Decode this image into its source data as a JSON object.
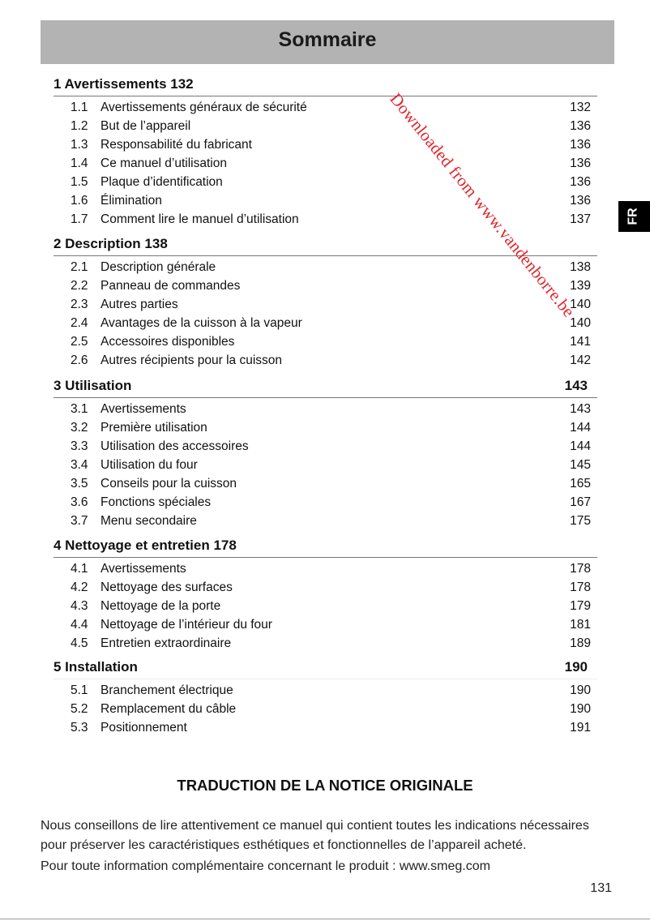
{
  "header": {
    "title": "Sommaire"
  },
  "language_tab": "FR",
  "watermark": "Downloaded from www.vandenborre.be",
  "sections": [
    {
      "heading": "1 Avertissements 132",
      "page_right": "",
      "entries": [
        {
          "num": "1.1",
          "text": "Avertissements généraux de sécurité",
          "page": "132"
        },
        {
          "num": "1.2",
          "text": "But de l’appareil",
          "page": "136"
        },
        {
          "num": "1.3",
          "text": "Responsabilité du fabricant",
          "page": "136"
        },
        {
          "num": "1.4",
          "text": "Ce manuel d’utilisation",
          "page": "136"
        },
        {
          "num": "1.5",
          "text": "Plaque d’identification",
          "page": "136"
        },
        {
          "num": "1.6",
          "text": "Élimination",
          "page": "136"
        },
        {
          "num": "1.7",
          "text": "Comment lire le manuel d’utilisation",
          "page": "137"
        }
      ]
    },
    {
      "heading": "2 Description 138",
      "page_right": "",
      "entries": [
        {
          "num": "2.1",
          "text": "Description générale",
          "page": "138"
        },
        {
          "num": "2.2",
          "text": "Panneau de commandes",
          "page": "139"
        },
        {
          "num": "2.3",
          "text": "Autres parties",
          "page": "140"
        },
        {
          "num": "2.4",
          "text": "Avantages de la cuisson à la vapeur",
          "page": "140"
        },
        {
          "num": "2.5",
          "text": "Accessoires disponibles",
          "page": "141"
        },
        {
          "num": "2.6",
          "text": "Autres récipients pour la cuisson",
          "page": "142"
        }
      ]
    },
    {
      "heading": "3 Utilisation",
      "page_right": "143",
      "entries": [
        {
          "num": "3.1",
          "text": "Avertissements",
          "page": "143"
        },
        {
          "num": "3.2",
          "text": "Première utilisation",
          "page": "144"
        },
        {
          "num": "3.3",
          "text": "Utilisation des accessoires",
          "page": "144"
        },
        {
          "num": "3.4",
          "text": "Utilisation du four",
          "page": "145"
        },
        {
          "num": "3.5",
          "text": "Conseils pour la cuisson",
          "page": "165"
        },
        {
          "num": "3.6",
          "text": "Fonctions spéciales",
          "page": "167"
        },
        {
          "num": "3.7",
          "text": "Menu secondaire",
          "page": "175"
        }
      ]
    },
    {
      "heading": "4 Nettoyage et entretien 178",
      "page_right": "",
      "entries": [
        {
          "num": "4.1",
          "text": "Avertissements",
          "page": "178"
        },
        {
          "num": "4.2",
          "text": "Nettoyage des surfaces",
          "page": "178"
        },
        {
          "num": "4.3",
          "text": "Nettoyage de la porte",
          "page": "179"
        },
        {
          "num": "4.4",
          "text": "Nettoyage de l’intérieur du four",
          "page": "181"
        },
        {
          "num": "4.5",
          "text": "Entretien extraordinaire",
          "page": "189"
        }
      ]
    },
    {
      "heading": "5 Installation",
      "page_right": "190",
      "entries": [
        {
          "num": "5.1",
          "text": "Branchement électrique",
          "page": "190"
        },
        {
          "num": "5.2",
          "text": "Remplacement du câble",
          "page": "190"
        },
        {
          "num": "5.3",
          "text": "Positionnement",
          "page": "191"
        }
      ]
    }
  ],
  "translation_title": "TRADUCTION DE LA NOTICE ORIGINALE",
  "intro_text": "Nous conseillons de lire attentivement ce manuel qui contient toutes les indications nécessaires pour préserver les caractéristiques esthétiques et fonctionnelles de l’appareil acheté.",
  "info_text": "Pour toute information complémentaire concernant le produit : www.smeg.com",
  "page_number": "131"
}
